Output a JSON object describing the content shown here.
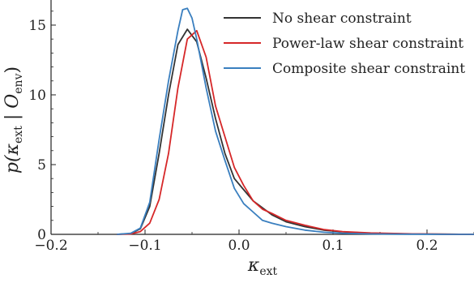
{
  "chart_data": {
    "type": "line",
    "title": "",
    "xlabel": "κ_ext",
    "ylabel": "p(κ_ext | O_env)",
    "xlim": [
      -0.2,
      0.25
    ],
    "ylim": [
      0,
      16.8
    ],
    "xticks": [
      -0.2,
      -0.1,
      0.0,
      0.1,
      0.2
    ],
    "xtick_labels": [
      "−0.2",
      "−0.1",
      "0.0",
      "0.1",
      "0.2"
    ],
    "yticks": [
      0,
      5,
      10,
      15
    ],
    "ytick_labels": [
      "0",
      "5",
      "10",
      "15"
    ],
    "grid": false,
    "legend": "top-right",
    "series": [
      {
        "name": "No shear constraint",
        "color": "#333333",
        "x": [
          -0.13,
          -0.115,
          -0.105,
          -0.095,
          -0.085,
          -0.075,
          -0.065,
          -0.055,
          -0.045,
          -0.035,
          -0.025,
          -0.015,
          -0.005,
          0.005,
          0.015,
          0.025,
          0.035,
          0.05,
          0.07,
          0.09,
          0.11,
          0.14,
          0.18,
          0.22,
          0.25
        ],
        "y": [
          0.0,
          0.05,
          0.4,
          2.0,
          5.8,
          10.0,
          13.6,
          14.7,
          13.8,
          11.2,
          8.3,
          5.8,
          4.0,
          3.2,
          2.4,
          1.9,
          1.4,
          0.9,
          0.55,
          0.3,
          0.18,
          0.08,
          0.03,
          0.01,
          0.0
        ]
      },
      {
        "name": "Power-law shear constraint",
        "color": "#d62728",
        "x": [
          -0.13,
          -0.115,
          -0.105,
          -0.095,
          -0.085,
          -0.075,
          -0.065,
          -0.055,
          -0.045,
          -0.035,
          -0.025,
          -0.015,
          -0.005,
          0.005,
          0.015,
          0.025,
          0.035,
          0.05,
          0.07,
          0.09,
          0.11,
          0.14,
          0.18,
          0.22,
          0.25
        ],
        "y": [
          0.0,
          0.03,
          0.2,
          0.8,
          2.5,
          5.8,
          10.5,
          14.0,
          14.6,
          12.7,
          9.2,
          7.0,
          4.8,
          3.5,
          2.4,
          1.8,
          1.5,
          1.0,
          0.65,
          0.35,
          0.2,
          0.1,
          0.04,
          0.01,
          0.0
        ]
      },
      {
        "name": "Composite shear constraint",
        "color": "#3a7fbf",
        "x": [
          -0.13,
          -0.115,
          -0.105,
          -0.095,
          -0.085,
          -0.075,
          -0.065,
          -0.06,
          -0.055,
          -0.05,
          -0.045,
          -0.035,
          -0.025,
          -0.015,
          -0.005,
          0.005,
          0.015,
          0.025,
          0.035,
          0.05,
          0.07,
          0.09,
          0.11,
          0.14,
          0.18,
          0.22,
          0.25
        ],
        "y": [
          0.0,
          0.08,
          0.45,
          2.3,
          6.8,
          11.0,
          14.6,
          16.1,
          16.2,
          15.5,
          14.0,
          10.5,
          7.4,
          5.3,
          3.3,
          2.2,
          1.6,
          1.0,
          0.8,
          0.55,
          0.3,
          0.15,
          0.08,
          0.03,
          0.01,
          0.0,
          0.0
        ]
      }
    ]
  }
}
